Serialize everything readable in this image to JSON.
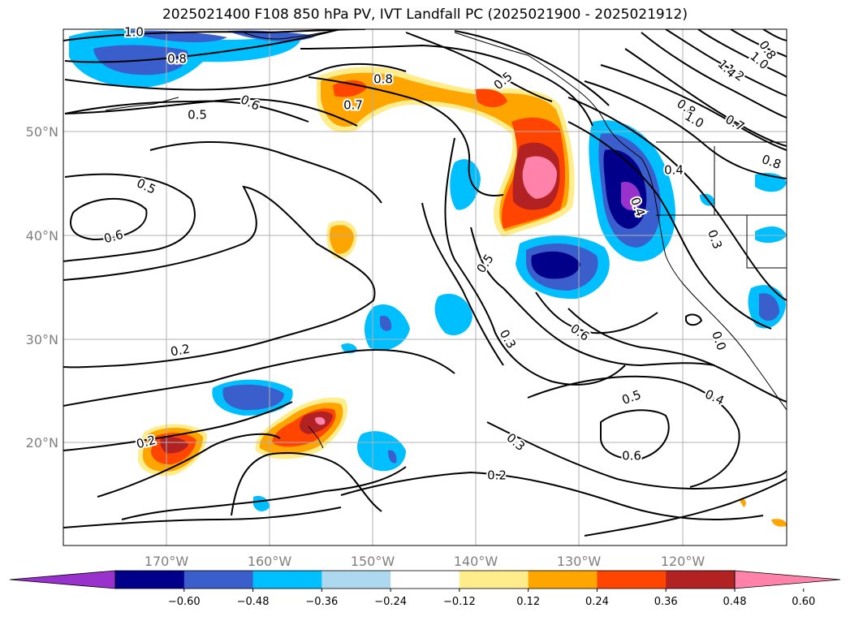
{
  "title": "2025021400 F108 850 hPa PV, IVT Landfall PC (2025021900 - 2025021912)",
  "lat_labels": [
    "50°N",
    "40°N",
    "30°N",
    "20°N"
  ],
  "lon_labels": [
    "170°W",
    "160°W",
    "150°W",
    "140°W",
    "130°W",
    "120°W"
  ],
  "contour_labels": [
    "1.0",
    "0.8",
    "0.8",
    "0.7",
    "0.6",
    "0.5",
    "0.5",
    "0.5",
    "0.6",
    "0.5",
    "0.4",
    "0.2",
    "0.3",
    "0.6",
    "0.5",
    "0.6",
    "0.3",
    "0.2",
    "0.2",
    "0.4",
    "0.3",
    "0.0",
    "0.4",
    "1.0",
    "1.2",
    "1.4",
    "0.8",
    "0.8",
    "1.0",
    "0.7",
    "0.8"
  ],
  "colorbar": {
    "ticks": [
      "−0.60",
      "−0.48",
      "−0.36",
      "−0.24",
      "−0.12",
      "0.12",
      "0.24",
      "0.36",
      "0.48",
      "0.60"
    ],
    "colors": [
      "#9932cc",
      "#00008b",
      "#3a5fcd",
      "#00bfff",
      "#add8f0",
      "#ffffff",
      "#ffec8b",
      "#ffa500",
      "#ff4500",
      "#b22222",
      "#ff82ab"
    ]
  },
  "legend": {
    "title": "",
    "xlabel": "",
    "ylabel": ""
  }
}
